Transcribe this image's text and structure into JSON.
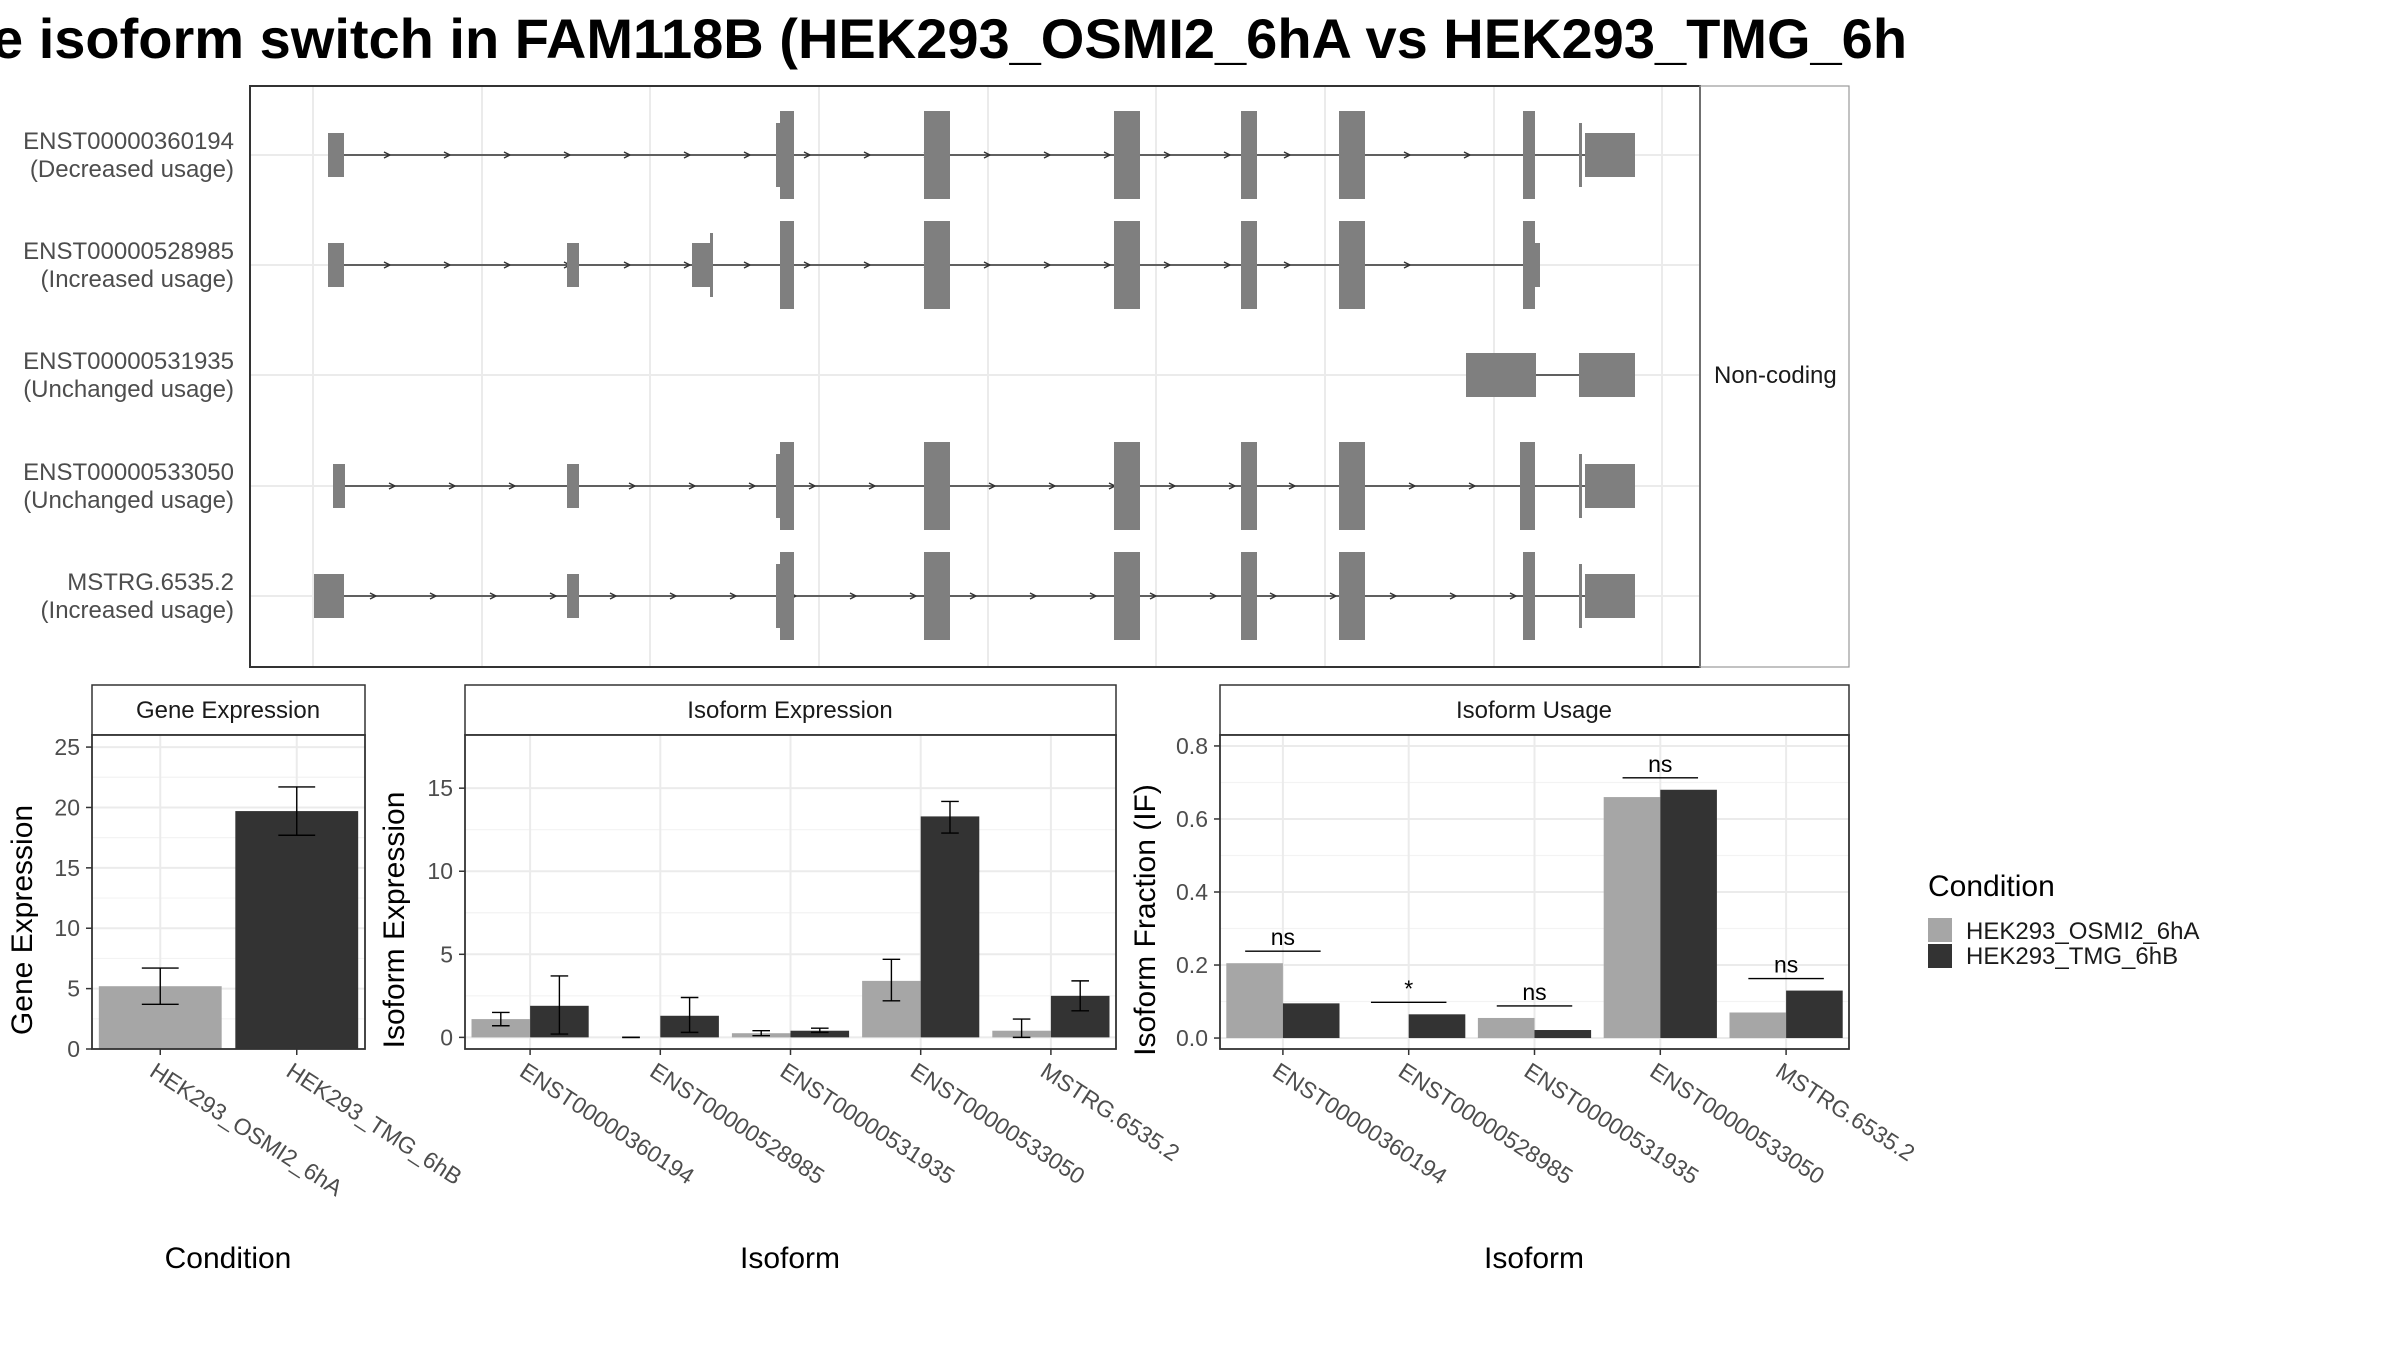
{
  "title": "e isoform switch in FAM118B (HEK293_OSMI2_6hA vs HEK293_TMG_6h",
  "colors": {
    "condition_a": "#a6a6a6",
    "condition_b": "#333333",
    "exon": "#7f7f7f",
    "intron": "#333333",
    "panel_border": "#333333",
    "grid": "#ebebeb",
    "strip_bg": "#ffffff"
  },
  "transcripts": {
    "rows": [
      {
        "id": "ENST00000360194",
        "usage": "(Decreased usage)",
        "coding": true,
        "side_label": ""
      },
      {
        "id": "ENST00000528985",
        "usage": "(Increased usage)",
        "coding": true,
        "side_label": ""
      },
      {
        "id": "ENST00000531935",
        "usage": "(Unchanged usage)",
        "coding": false,
        "side_label": "Non-coding"
      },
      {
        "id": "ENST00000533050",
        "usage": "(Unchanged usage)",
        "coding": true,
        "side_label": ""
      },
      {
        "id": "MSTRG.6535.2",
        "usage": "(Increased usage)",
        "coding": true,
        "side_label": ""
      }
    ]
  },
  "panels": {
    "gene": {
      "strip": "Gene Expression",
      "ylabel": "Gene Expression",
      "xlabel": "Condition"
    },
    "isoform_expr": {
      "strip": "Isoform Expression",
      "ylabel": "Isoform Expression",
      "xlabel": "Isoform"
    },
    "isoform_usage": {
      "strip": "Isoform Usage",
      "ylabel": "Isoform Fraction (IF)",
      "xlabel": "Isoform"
    }
  },
  "legend": {
    "title": "Condition",
    "items": [
      {
        "label": "HEK293_OSMI2_6hA",
        "color": "#a6a6a6"
      },
      {
        "label": "HEK293_TMG_6hB",
        "color": "#333333"
      }
    ]
  },
  "chart_data": [
    {
      "type": "bar",
      "title": "Gene Expression",
      "xlabel": "Condition",
      "ylabel": "Gene Expression",
      "categories": [
        "HEK293_OSMI2_6hA",
        "HEK293_TMG_6hB"
      ],
      "values": [
        5.2,
        19.7
      ],
      "error_low": [
        3.7,
        17.7
      ],
      "error_high": [
        6.7,
        21.7
      ],
      "ylim": [
        0,
        26
      ],
      "yticks": [
        0,
        5,
        10,
        15,
        20,
        25
      ]
    },
    {
      "type": "bar",
      "title": "Isoform Expression",
      "xlabel": "Isoform",
      "ylabel": "Isoform Expression",
      "categories": [
        "ENST00000360194",
        "ENST00000528985",
        "ENST00000531935",
        "ENST00000533050",
        "MSTRG.6535.2"
      ],
      "series": [
        {
          "name": "HEK293_OSMI2_6hA",
          "values": [
            1.1,
            0.0,
            0.25,
            3.4,
            0.4
          ],
          "error_low": [
            0.7,
            0.0,
            0.1,
            2.2,
            0.0
          ],
          "error_high": [
            1.5,
            0.0,
            0.4,
            4.7,
            1.1
          ]
        },
        {
          "name": "HEK293_TMG_6hB",
          "values": [
            1.9,
            1.3,
            0.4,
            13.3,
            2.5
          ],
          "error_low": [
            0.2,
            0.3,
            0.3,
            12.3,
            1.6
          ],
          "error_high": [
            3.7,
            2.4,
            0.55,
            14.2,
            3.4
          ]
        }
      ],
      "ylim": [
        -0.7,
        18.2
      ],
      "yticks": [
        0,
        5,
        10,
        15
      ]
    },
    {
      "type": "bar",
      "title": "Isoform Usage",
      "xlabel": "Isoform",
      "ylabel": "Isoform Fraction (IF)",
      "categories": [
        "ENST00000360194",
        "ENST00000528985",
        "ENST00000531935",
        "ENST00000533050",
        "MSTRG.6535.2"
      ],
      "series": [
        {
          "name": "HEK293_OSMI2_6hA",
          "values": [
            0.205,
            0.0,
            0.055,
            0.66,
            0.07
          ]
        },
        {
          "name": "HEK293_TMG_6hB",
          "values": [
            0.095,
            0.065,
            0.022,
            0.68,
            0.13
          ]
        }
      ],
      "significance": [
        "ns",
        "*",
        "ns",
        "ns",
        "ns"
      ],
      "ylim": [
        -0.03,
        0.83
      ],
      "yticks": [
        0.0,
        0.2,
        0.4,
        0.6,
        0.8
      ],
      "ytick_labels": [
        "0.0",
        "0.2",
        "0.4",
        "0.6",
        "0.8"
      ]
    }
  ]
}
